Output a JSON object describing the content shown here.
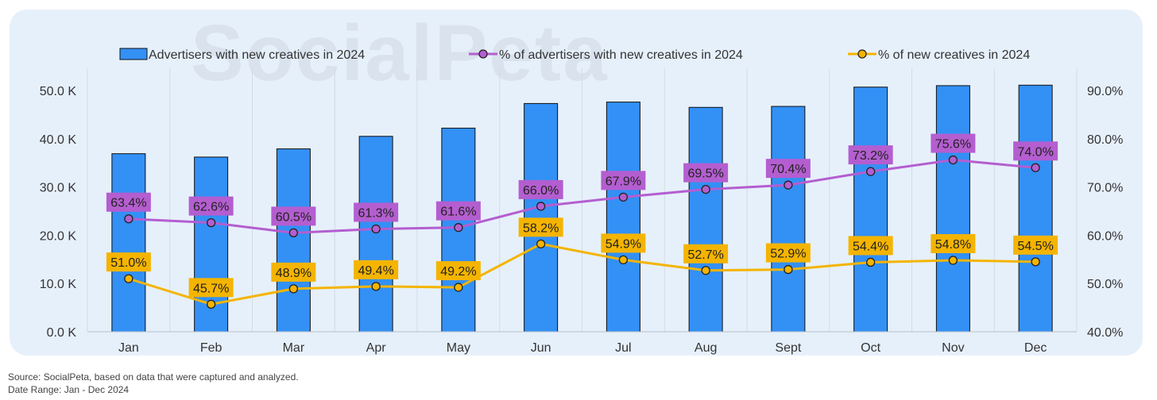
{
  "watermark": "SocialPeta",
  "footnote": {
    "source": "Source: SocialPeta, based on data that were captured and analyzed.",
    "date_range": "Date Range: Jan - Dec 2024"
  },
  "colors": {
    "bar": "#3390f5",
    "line_advertisers_pct": "#b45ed0",
    "line_creatives_pct": "#f4b400",
    "panel_bg": "#e6f0fb"
  },
  "chart_data": {
    "type": "bar",
    "categories": [
      "Jan",
      "Feb",
      "Mar",
      "Apr",
      "May",
      "Jun",
      "Jul",
      "Aug",
      "Sept",
      "Oct",
      "Nov",
      "Dec"
    ],
    "series": [
      {
        "name": "Advertisers with new creatives in 2024",
        "type": "bar",
        "axis": "left",
        "values": [
          36.9,
          36.2,
          37.9,
          40.5,
          42.2,
          47.3,
          47.6,
          46.5,
          46.7,
          50.7,
          51.0,
          51.1
        ]
      },
      {
        "name": "% of advertisers with new creatives in 2024",
        "type": "line",
        "axis": "right",
        "values": [
          63.4,
          62.6,
          60.5,
          61.3,
          61.6,
          66.0,
          67.9,
          69.5,
          70.4,
          73.2,
          75.6,
          74.0
        ],
        "labels": [
          "63.4%",
          "62.6%",
          "60.5%",
          "61.3%",
          "61.6%",
          "66.0%",
          "67.9%",
          "69.5%",
          "70.4%",
          "73.2%",
          "75.6%",
          "74.0%"
        ]
      },
      {
        "name": "% of new creatives in 2024",
        "type": "line",
        "axis": "right",
        "values": [
          51.0,
          45.7,
          48.9,
          49.4,
          49.2,
          58.2,
          54.9,
          52.7,
          52.9,
          54.4,
          54.8,
          54.5
        ],
        "labels": [
          "51.0%",
          "45.7%",
          "48.9%",
          "49.4%",
          "49.2%",
          "58.2%",
          "54.9%",
          "52.7%",
          "52.9%",
          "54.4%",
          "54.8%",
          "54.5%"
        ]
      }
    ],
    "y_left": {
      "min": 0,
      "max": 50,
      "unit": "K",
      "ticks": [
        0,
        10,
        20,
        30,
        40,
        50
      ],
      "tick_labels": [
        "0.0 K",
        "10.0 K",
        "20.0 K",
        "30.0 K",
        "40.0 K",
        "50.0 K"
      ]
    },
    "y_right": {
      "min": 40,
      "max": 90,
      "unit": "%",
      "ticks": [
        40,
        50,
        60,
        70,
        80,
        90
      ],
      "tick_labels": [
        "40.0%",
        "50.0%",
        "60.0%",
        "70.0%",
        "80.0%",
        "90.0%"
      ]
    },
    "legend_position": "top",
    "grid": "vertical"
  }
}
